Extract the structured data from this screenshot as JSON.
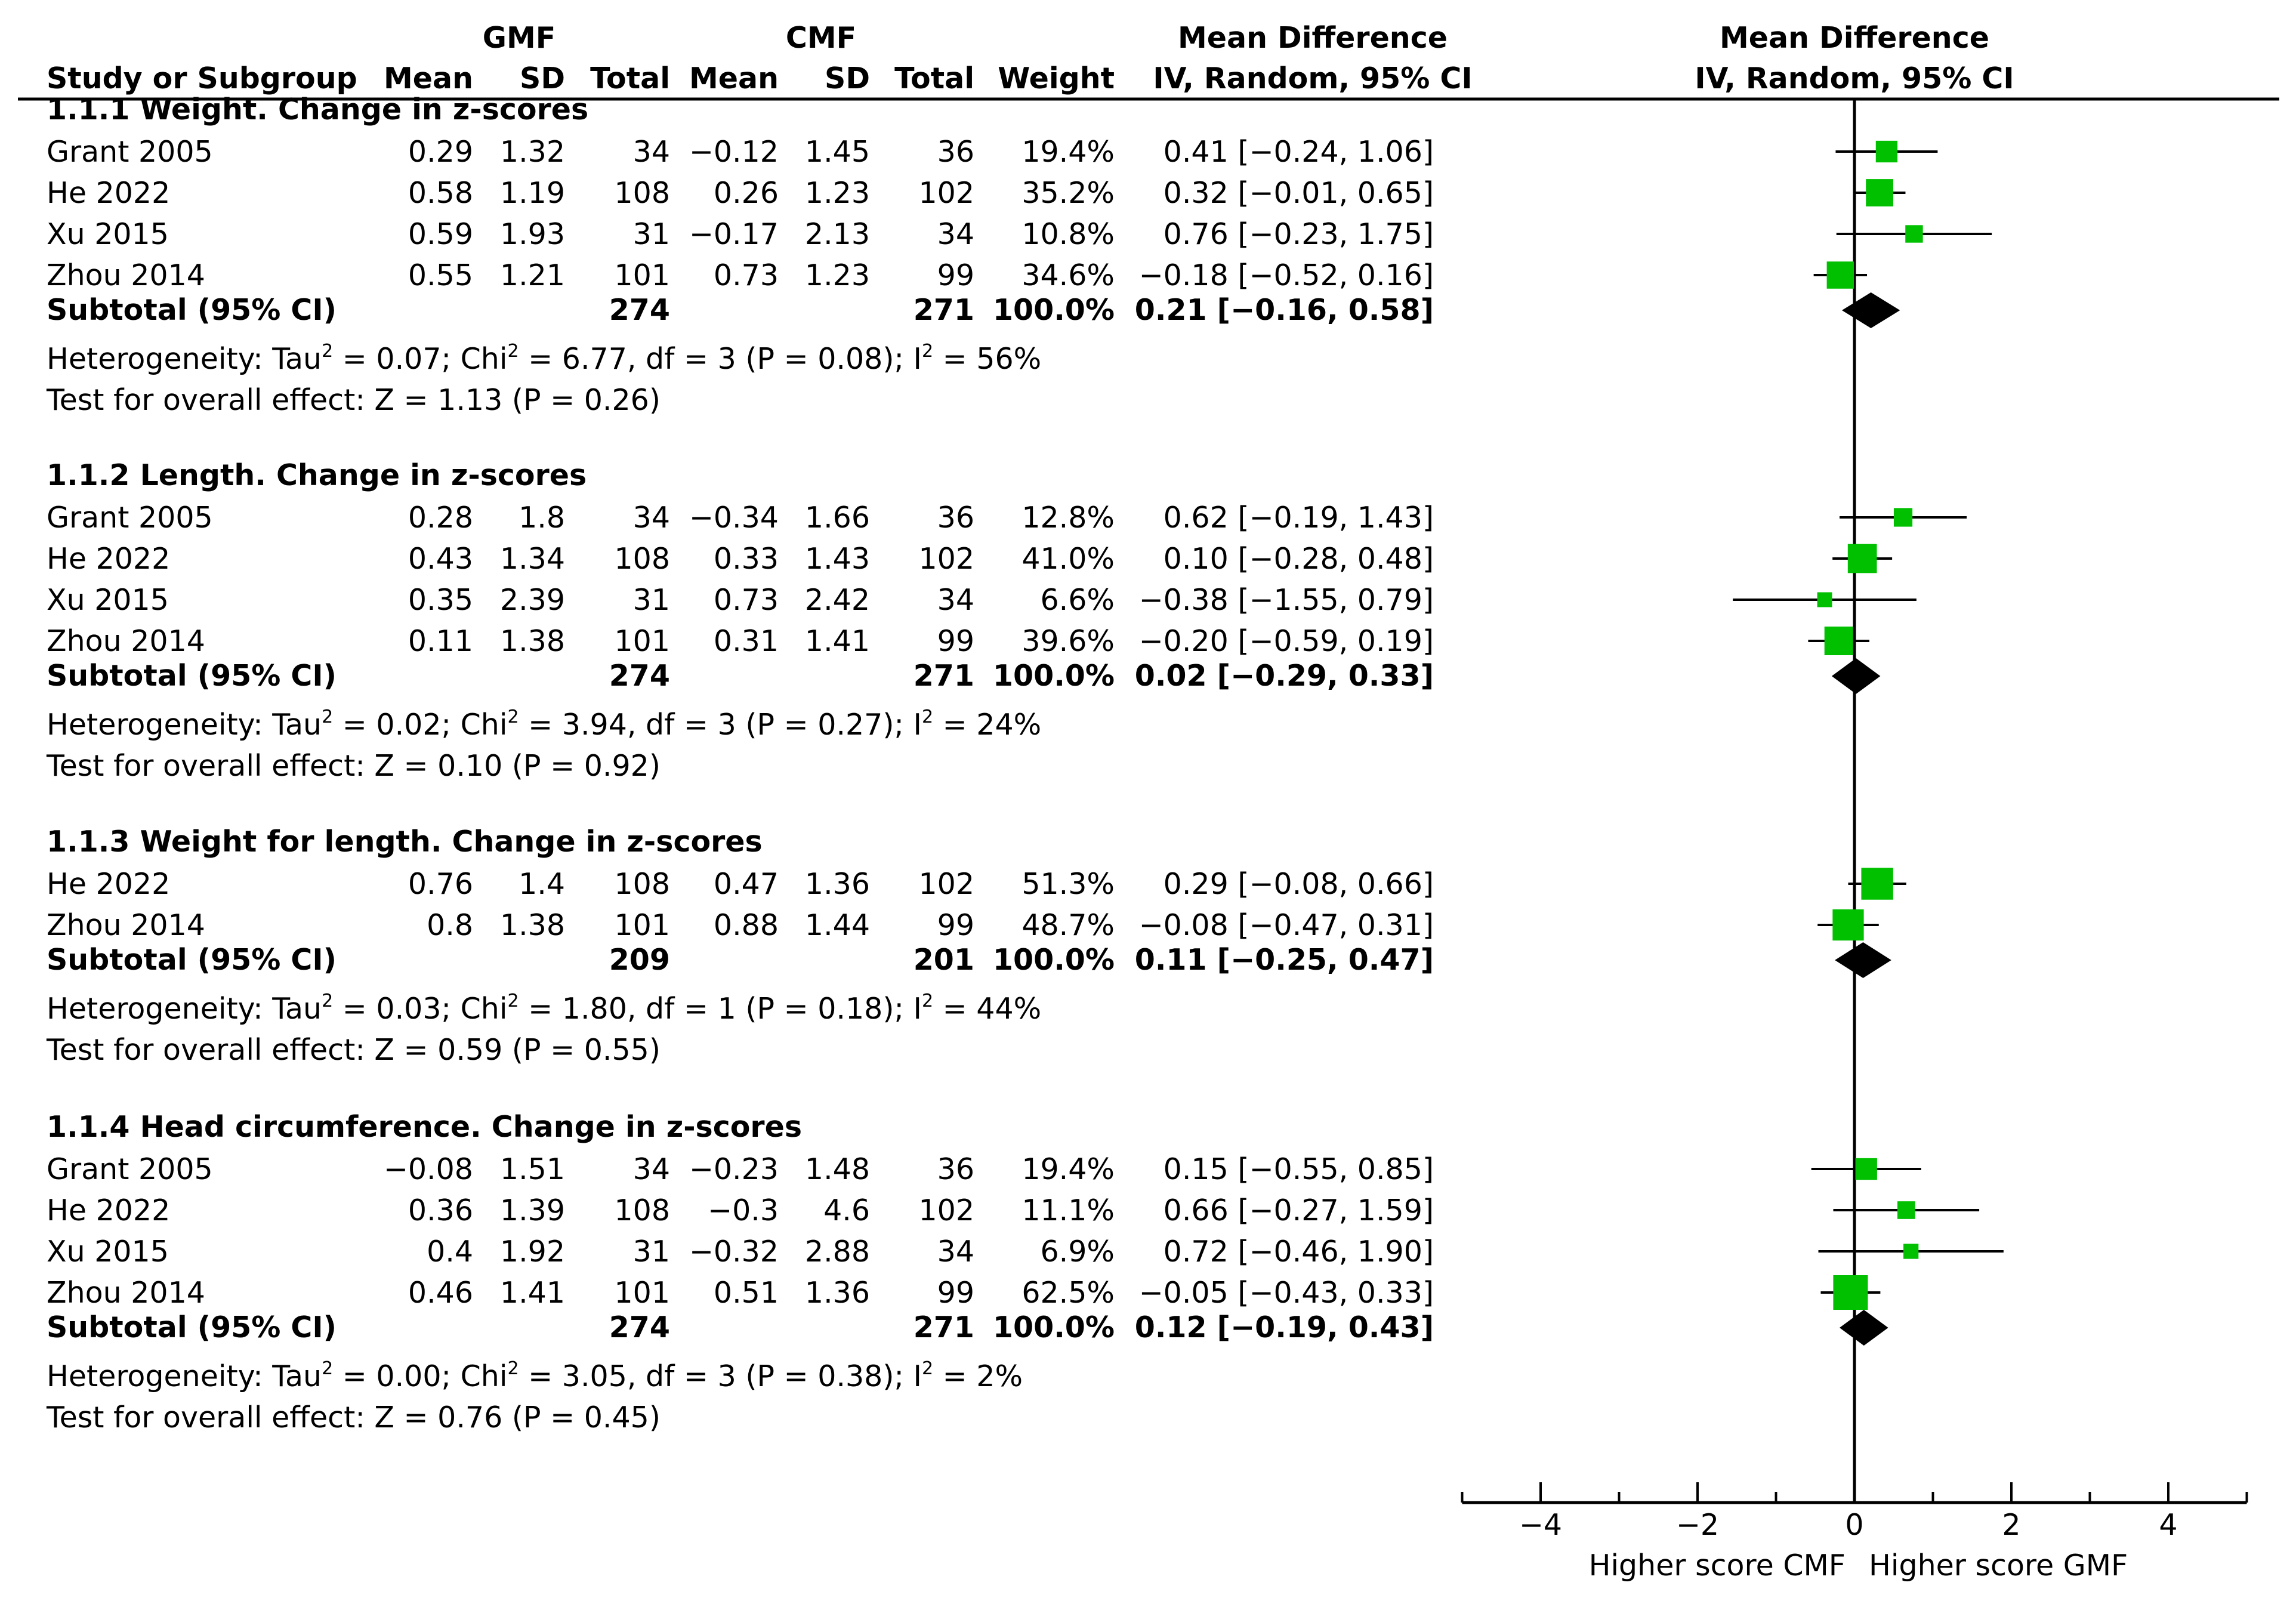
{
  "chart_data": {
    "type": "forest",
    "title": "",
    "group_labels": {
      "experimental": "GMF",
      "control": "CMF"
    },
    "header": {
      "study": "Study or Subgroup",
      "mean": "Mean",
      "sd": "SD",
      "total": "Total",
      "weight": "Weight",
      "effect_title": "Mean Difference",
      "effect_method": "IV, Random, 95% CI"
    },
    "axis": {
      "xlim": [
        -5,
        5
      ],
      "ticks": [
        -4,
        -2,
        0,
        2,
        4
      ],
      "tick_labels": [
        "−4",
        "−2",
        "0",
        "2",
        "4"
      ],
      "favours_left": "Higher score CMF",
      "favours_right": "Higher score GMF"
    },
    "subgroups": [
      {
        "title": "1.1.1 Weight. Change in z-scores",
        "studies": [
          {
            "name": "Grant 2005",
            "e_mean": "0.29",
            "e_sd": "1.32",
            "e_total": "34",
            "c_mean": "−0.12",
            "c_sd": "1.45",
            "c_total": "36",
            "weight": "19.4%",
            "ci": "0.41 [−0.24, 1.06]",
            "md": 0.41,
            "lo": -0.24,
            "hi": 1.06,
            "w": 19.4
          },
          {
            "name": "He 2022",
            "e_mean": "0.58",
            "e_sd": "1.19",
            "e_total": "108",
            "c_mean": "0.26",
            "c_sd": "1.23",
            "c_total": "102",
            "weight": "35.2%",
            "ci": "0.32 [−0.01, 0.65]",
            "md": 0.32,
            "lo": -0.01,
            "hi": 0.65,
            "w": 35.2
          },
          {
            "name": "Xu 2015",
            "e_mean": "0.59",
            "e_sd": "1.93",
            "e_total": "31",
            "c_mean": "−0.17",
            "c_sd": "2.13",
            "c_total": "34",
            "weight": "10.8%",
            "ci": "0.76 [−0.23, 1.75]",
            "md": 0.76,
            "lo": -0.23,
            "hi": 1.75,
            "w": 10.8
          },
          {
            "name": "Zhou 2014",
            "e_mean": "0.55",
            "e_sd": "1.21",
            "e_total": "101",
            "c_mean": "0.73",
            "c_sd": "1.23",
            "c_total": "99",
            "weight": "34.6%",
            "ci": "−0.18 [−0.52, 0.16]",
            "md": -0.18,
            "lo": -0.52,
            "hi": 0.16,
            "w": 34.6
          }
        ],
        "subtotal": {
          "label": "Subtotal (95% CI)",
          "e_total": "274",
          "c_total": "271",
          "weight": "100.0%",
          "ci": "0.21 [−0.16, 0.58]",
          "md": 0.21,
          "lo": -0.16,
          "hi": 0.58
        },
        "heterogeneity": {
          "pre": "Heterogeneity: Tau",
          "mid": " = 0.07; Chi",
          "mid2": " = 6.77, df = 3 (P = 0.08); I",
          "end": " = 56%",
          "sup": "2"
        },
        "overall": "Test for overall effect: Z = 1.13 (P = 0.26)"
      },
      {
        "title": "1.1.2 Length. Change in z-scores",
        "studies": [
          {
            "name": "Grant 2005",
            "e_mean": "0.28",
            "e_sd": "1.8",
            "e_total": "34",
            "c_mean": "−0.34",
            "c_sd": "1.66",
            "c_total": "36",
            "weight": "12.8%",
            "ci": "0.62 [−0.19, 1.43]",
            "md": 0.62,
            "lo": -0.19,
            "hi": 1.43,
            "w": 12.8
          },
          {
            "name": "He 2022",
            "e_mean": "0.43",
            "e_sd": "1.34",
            "e_total": "108",
            "c_mean": "0.33",
            "c_sd": "1.43",
            "c_total": "102",
            "weight": "41.0%",
            "ci": "0.10 [−0.28, 0.48]",
            "md": 0.1,
            "lo": -0.28,
            "hi": 0.48,
            "w": 41.0
          },
          {
            "name": "Xu 2015",
            "e_mean": "0.35",
            "e_sd": "2.39",
            "e_total": "31",
            "c_mean": "0.73",
            "c_sd": "2.42",
            "c_total": "34",
            "weight": "6.6%",
            "ci": "−0.38 [−1.55, 0.79]",
            "md": -0.38,
            "lo": -1.55,
            "hi": 0.79,
            "w": 6.6
          },
          {
            "name": "Zhou 2014",
            "e_mean": "0.11",
            "e_sd": "1.38",
            "e_total": "101",
            "c_mean": "0.31",
            "c_sd": "1.41",
            "c_total": "99",
            "weight": "39.6%",
            "ci": "−0.20 [−0.59, 0.19]",
            "md": -0.2,
            "lo": -0.59,
            "hi": 0.19,
            "w": 39.6
          }
        ],
        "subtotal": {
          "label": "Subtotal (95% CI)",
          "e_total": "274",
          "c_total": "271",
          "weight": "100.0%",
          "ci": "0.02 [−0.29, 0.33]",
          "md": 0.02,
          "lo": -0.29,
          "hi": 0.33
        },
        "heterogeneity": {
          "pre": "Heterogeneity: Tau",
          "mid": " = 0.02; Chi",
          "mid2": " = 3.94, df = 3 (P = 0.27); I",
          "end": " = 24%",
          "sup": "2"
        },
        "overall": "Test for overall effect: Z = 0.10 (P = 0.92)"
      },
      {
        "title": "1.1.3 Weight for length. Change in z-scores",
        "studies": [
          {
            "name": "He 2022",
            "e_mean": "0.76",
            "e_sd": "1.4",
            "e_total": "108",
            "c_mean": "0.47",
            "c_sd": "1.36",
            "c_total": "102",
            "weight": "51.3%",
            "ci": "0.29 [−0.08, 0.66]",
            "md": 0.29,
            "lo": -0.08,
            "hi": 0.66,
            "w": 51.3
          },
          {
            "name": "Zhou 2014",
            "e_mean": "0.8",
            "e_sd": "1.38",
            "e_total": "101",
            "c_mean": "0.88",
            "c_sd": "1.44",
            "c_total": "99",
            "weight": "48.7%",
            "ci": "−0.08 [−0.47, 0.31]",
            "md": -0.08,
            "lo": -0.47,
            "hi": 0.31,
            "w": 48.7
          }
        ],
        "subtotal": {
          "label": "Subtotal (95% CI)",
          "e_total": "209",
          "c_total": "201",
          "weight": "100.0%",
          "ci": "0.11 [−0.25, 0.47]",
          "md": 0.11,
          "lo": -0.25,
          "hi": 0.47
        },
        "heterogeneity": {
          "pre": "Heterogeneity: Tau",
          "mid": " = 0.03; Chi",
          "mid2": " = 1.80, df = 1 (P = 0.18); I",
          "end": " = 44%",
          "sup": "2"
        },
        "overall": "Test for overall effect: Z = 0.59 (P = 0.55)"
      },
      {
        "title": "1.1.4 Head circumference. Change in z-scores",
        "studies": [
          {
            "name": "Grant 2005",
            "e_mean": "−0.08",
            "e_sd": "1.51",
            "e_total": "34",
            "c_mean": "−0.23",
            "c_sd": "1.48",
            "c_total": "36",
            "weight": "19.4%",
            "ci": "0.15 [−0.55, 0.85]",
            "md": 0.15,
            "lo": -0.55,
            "hi": 0.85,
            "w": 19.4
          },
          {
            "name": "He 2022",
            "e_mean": "0.36",
            "e_sd": "1.39",
            "e_total": "108",
            "c_mean": "−0.3",
            "c_sd": "4.6",
            "c_total": "102",
            "weight": "11.1%",
            "ci": "0.66 [−0.27, 1.59]",
            "md": 0.66,
            "lo": -0.27,
            "hi": 1.59,
            "w": 11.1
          },
          {
            "name": "Xu 2015",
            "e_mean": "0.4",
            "e_sd": "1.92",
            "e_total": "31",
            "c_mean": "−0.32",
            "c_sd": "2.88",
            "c_total": "34",
            "weight": "6.9%",
            "ci": "0.72 [−0.46, 1.90]",
            "md": 0.72,
            "lo": -0.46,
            "hi": 1.9,
            "w": 6.9
          },
          {
            "name": "Zhou 2014",
            "e_mean": "0.46",
            "e_sd": "1.41",
            "e_total": "101",
            "c_mean": "0.51",
            "c_sd": "1.36",
            "c_total": "99",
            "weight": "62.5%",
            "ci": "−0.05 [−0.43, 0.33]",
            "md": -0.05,
            "lo": -0.43,
            "hi": 0.33,
            "w": 62.5
          }
        ],
        "subtotal": {
          "label": "Subtotal (95% CI)",
          "e_total": "274",
          "c_total": "271",
          "weight": "100.0%",
          "ci": "0.12 [−0.19, 0.43]",
          "md": 0.12,
          "lo": -0.19,
          "hi": 0.43
        },
        "heterogeneity": {
          "pre": "Heterogeneity: Tau",
          "mid": " = 0.00; Chi",
          "mid2": " = 3.05, df = 3 (P = 0.38); I",
          "end": " = 2%",
          "sup": "2"
        },
        "overall": "Test for overall effect: Z = 0.76 (P = 0.45)"
      }
    ],
    "colors": {
      "study_marker": "#00c000",
      "diamond": "#000000",
      "line": "#000000"
    }
  }
}
